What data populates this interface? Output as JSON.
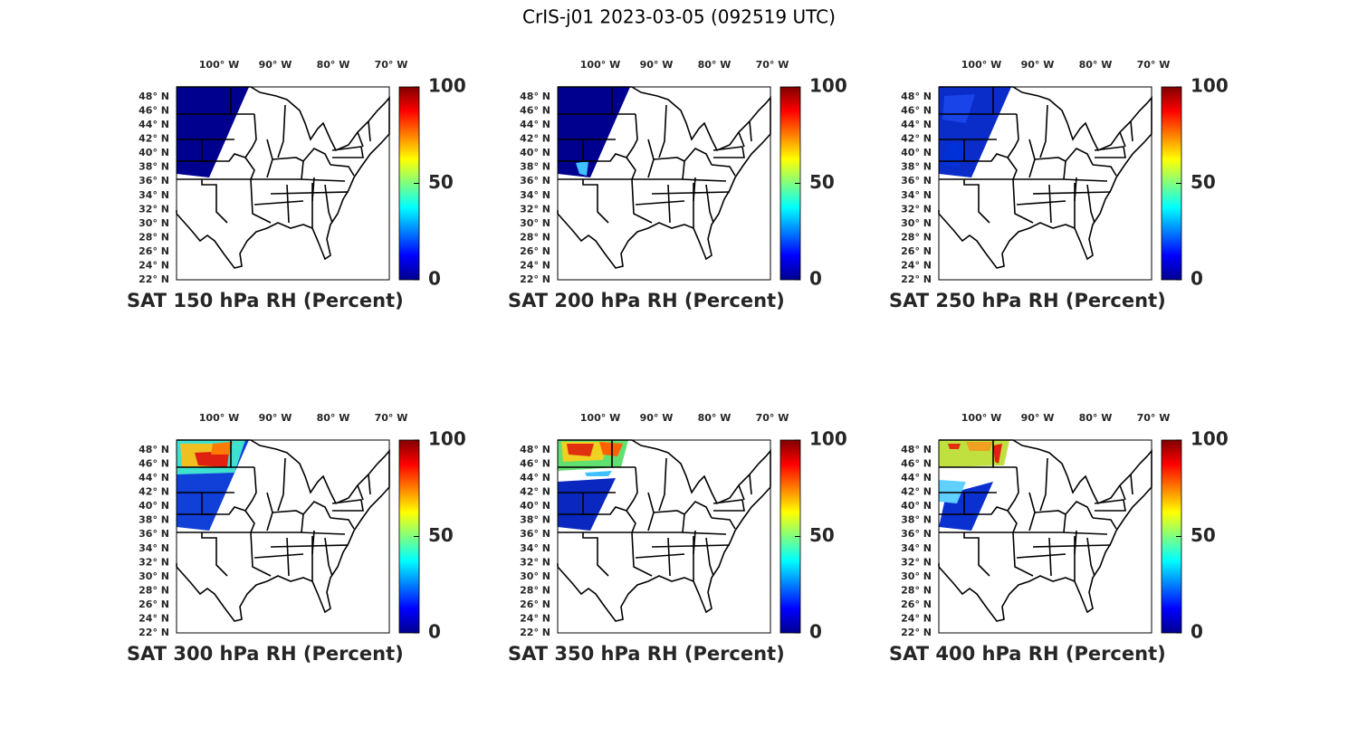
{
  "title": "CrIS-j01 2023-03-05 (092519 UTC)",
  "lon_labels": [
    "100° W",
    "90° W",
    "80° W",
    "70° W"
  ],
  "lat_labels": [
    "48° N",
    "46° N",
    "44° N",
    "42° N",
    "40° N",
    "38° N",
    "36° N",
    "34° N",
    "32° N",
    "30° N",
    "28° N",
    "26° N",
    "24° N",
    "22° N"
  ],
  "panels": [
    {
      "title": "SAT 150 hPa RH (Percent)",
      "colorbar": {
        "lim": [
          0,
          100
        ],
        "ticks": [
          0,
          50,
          100
        ]
      }
    },
    {
      "title": "SAT 200 hPa RH (Percent)",
      "colorbar": {
        "lim": [
          0,
          100
        ],
        "ticks": [
          0,
          50,
          100
        ]
      }
    },
    {
      "title": "SAT 250 hPa RH (Percent)",
      "colorbar": {
        "lim": [
          0,
          100
        ],
        "ticks": [
          0,
          50,
          100
        ]
      }
    },
    {
      "title": "SAT 300 hPa RH (Percent)",
      "colorbar": {
        "lim": [
          0,
          100
        ],
        "ticks": [
          0,
          50,
          100
        ]
      }
    },
    {
      "title": "SAT 350 hPa RH (Percent)",
      "colorbar": {
        "lim": [
          0,
          100
        ],
        "ticks": [
          0,
          50,
          100
        ]
      }
    },
    {
      "title": "SAT 400 hPa RH (Percent)",
      "colorbar": {
        "lim": [
          0,
          100
        ],
        "ticks": [
          0,
          50,
          100
        ]
      }
    }
  ]
}
